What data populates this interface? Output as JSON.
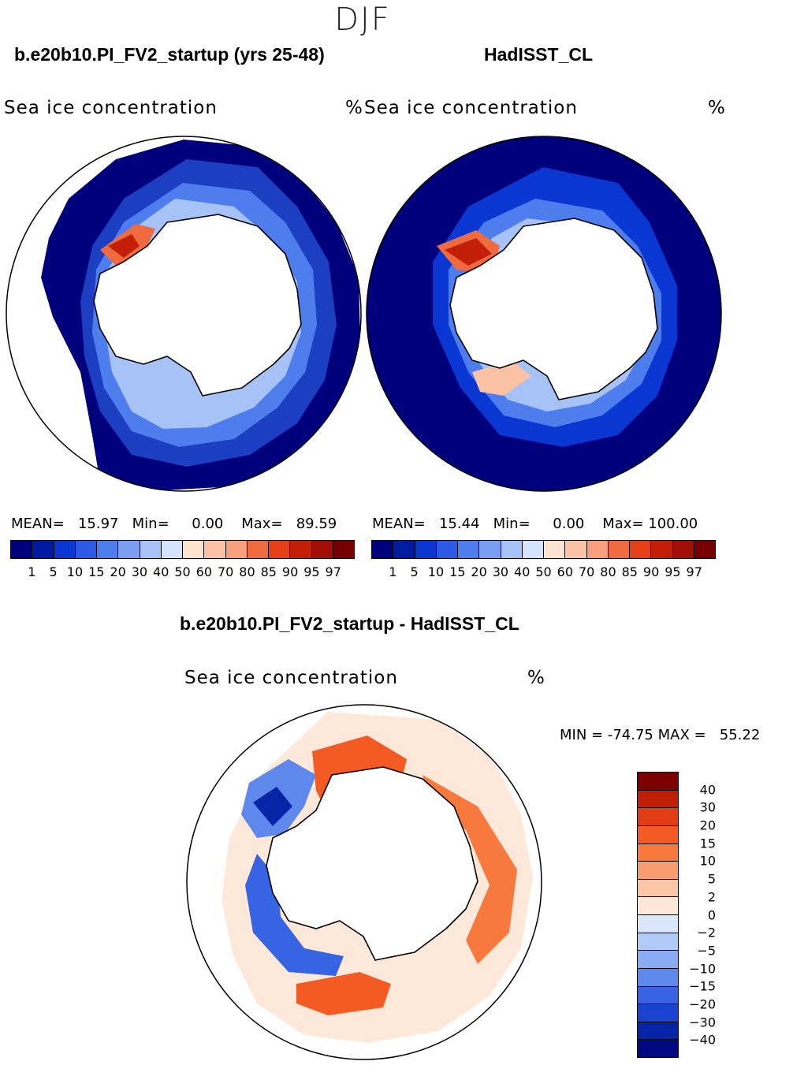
{
  "season": "DJF",
  "panels": {
    "model": {
      "title": "b.e20b10.PI_FV2_startup (yrs 25-48)",
      "variable": "Sea ice concentration",
      "unit": "%",
      "mean_label": "MEAN=",
      "mean": "15.97",
      "min_label": "Min=",
      "min": "0.00",
      "max_label": "Max=",
      "max": "89.59"
    },
    "obs": {
      "title": "HadISST_CL",
      "variable": "Sea ice concentration",
      "unit": "%",
      "mean_label": "MEAN=",
      "mean": "15.44",
      "min_label": "Min=",
      "min": "0.00",
      "max_label": "Max=",
      "max": "100.00"
    },
    "diff": {
      "title": "b.e20b10.PI_FV2_startup - HadISST_CL",
      "variable": "Sea ice concentration",
      "unit": "%",
      "min_label": "MIN =",
      "min": "-74.75",
      "max_label": "MAX =",
      "max": "55.22"
    }
  },
  "legend_abs": {
    "ticks": [
      "1",
      "5",
      "10",
      "15",
      "20",
      "30",
      "40",
      "50",
      "60",
      "70",
      "80",
      "85",
      "90",
      "95",
      "97"
    ],
    "colors": [
      "#00007d",
      "#001aa0",
      "#0a36d2",
      "#2c5ae6",
      "#4e7ded",
      "#7a9ff2",
      "#a6c2f7",
      "#d5e4fb",
      "#fde3d0",
      "#fbc2a6",
      "#f8a07e",
      "#f06a3f",
      "#e64018",
      "#c21e08",
      "#a10e05",
      "#760000"
    ]
  },
  "legend_diff": {
    "ticks": [
      "40",
      "30",
      "20",
      "15",
      "10",
      "5",
      "2",
      "0",
      "−2",
      "−5",
      "−10",
      "−15",
      "−20",
      "−30",
      "−40"
    ],
    "colors": [
      "#7c0000",
      "#c01d05",
      "#e23d12",
      "#f45a24",
      "#f7793e",
      "#f99d70",
      "#fbc6a8",
      "#fde8da",
      "#d9e6fb",
      "#b1cbf8",
      "#89acf3",
      "#5f88ec",
      "#3764e3",
      "#1a44cf",
      "#0624a6",
      "#000a80"
    ]
  },
  "map_colors": {
    "land": "#ffffff",
    "coast": "#000000",
    "open_ocean": "#00007d"
  }
}
